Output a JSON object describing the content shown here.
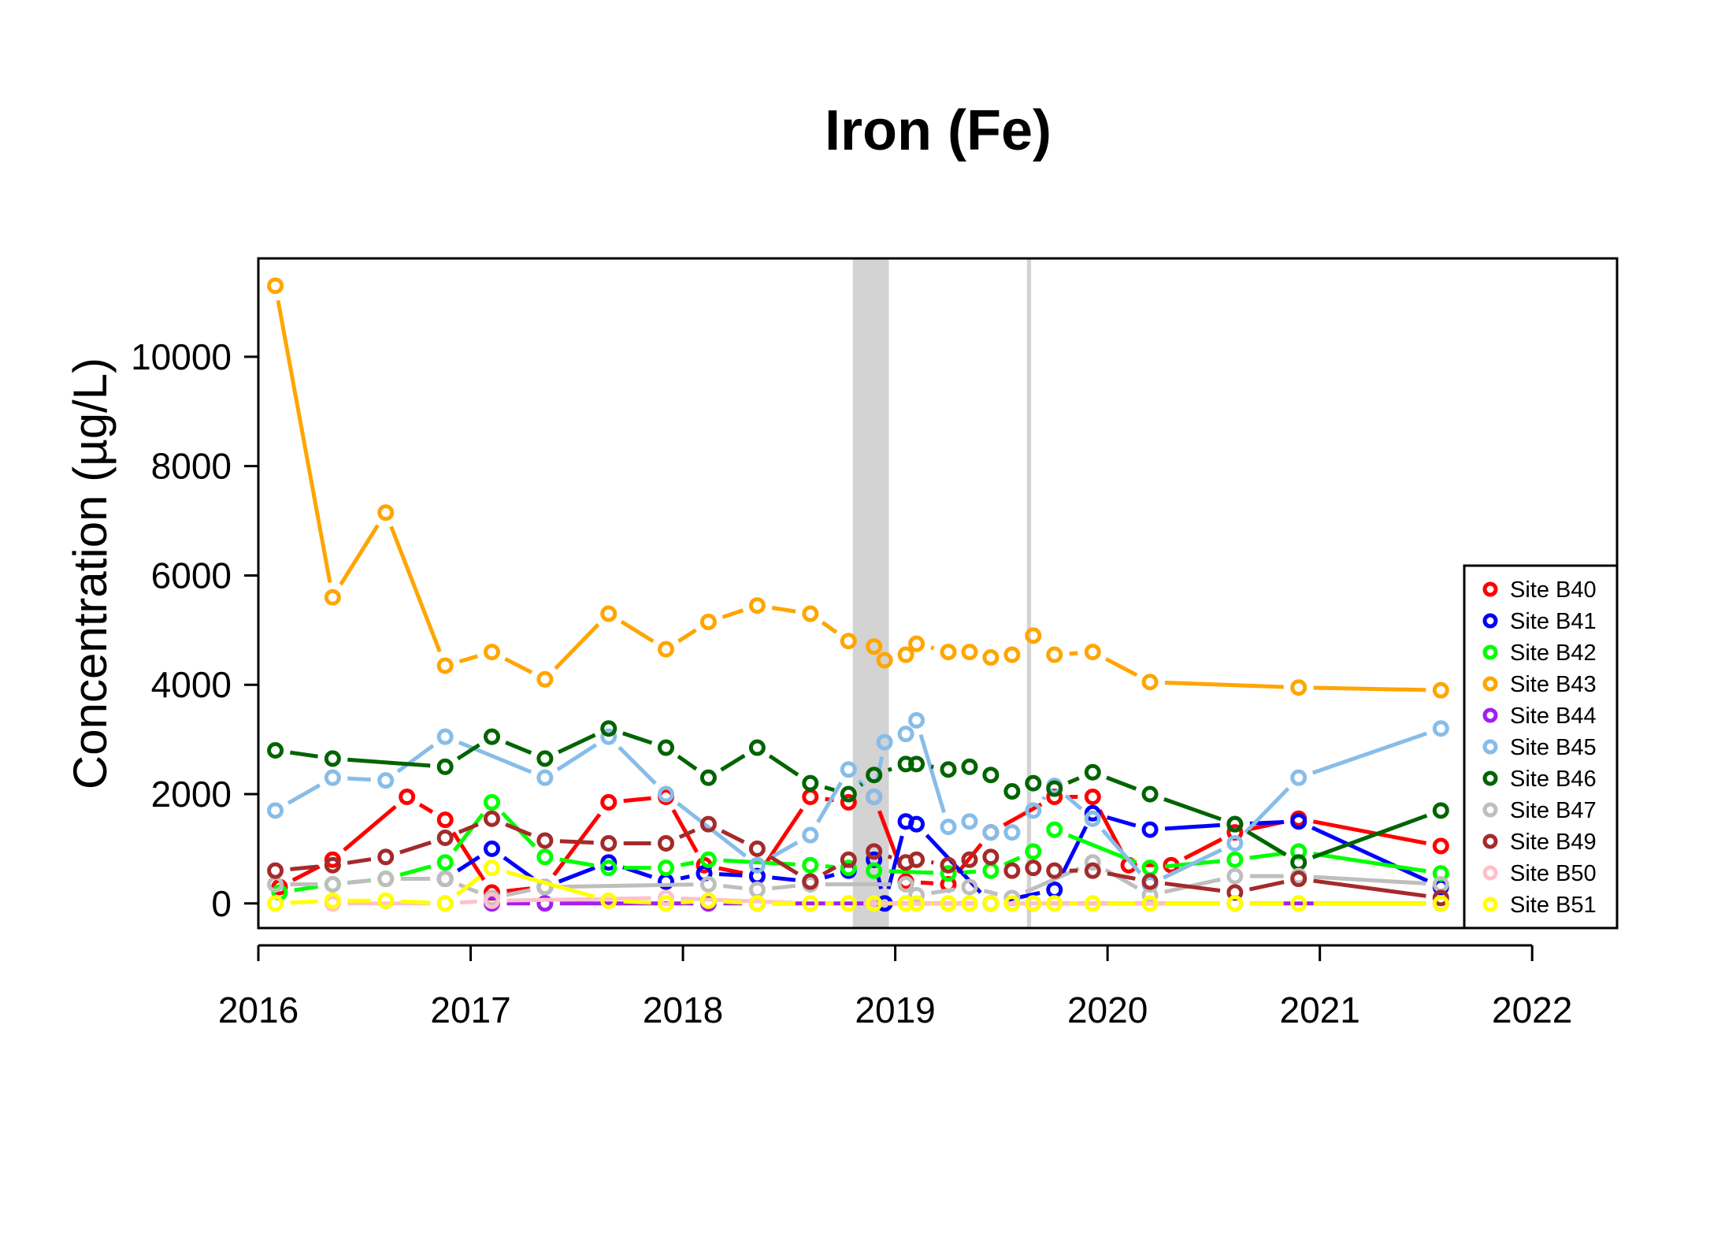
{
  "chart_data": {
    "type": "line",
    "title": "Iron (Fe)",
    "xlabel": "",
    "ylabel": "Concentration (µg/L)",
    "xlim": [
      2016.0,
      2022.4
    ],
    "ylim": [
      -450,
      11800
    ],
    "x_ticks": [
      2016,
      2017,
      2018,
      2019,
      2020,
      2021,
      2022
    ],
    "x_tick_labels": [
      "2016",
      "2017",
      "2018",
      "2019",
      "2020",
      "2021",
      "2022"
    ],
    "y_ticks": [
      0,
      2000,
      4000,
      6000,
      8000,
      10000
    ],
    "y_tick_labels": [
      "0",
      "2000",
      "4000",
      "6000",
      "8000",
      "10000"
    ],
    "legend_position": "bottom-right",
    "shaded_bands": [
      {
        "start": 2018.8,
        "end": 2018.97,
        "color": "#d3d3d3"
      },
      {
        "start": 2019.62,
        "end": 2019.64,
        "color": "#d3d3d3"
      }
    ],
    "series": [
      {
        "name": "Site B40",
        "color": "#ff0000",
        "points": [
          [
            2016.1,
            300
          ],
          [
            2016.35,
            800
          ],
          [
            2016.7,
            1950
          ],
          [
            2016.88,
            1530
          ],
          [
            2017.1,
            200
          ],
          [
            2017.35,
            300
          ],
          [
            2017.65,
            1850
          ],
          [
            2017.92,
            1950
          ],
          [
            2018.1,
            700
          ],
          [
            2018.35,
            500
          ],
          [
            2018.6,
            1950
          ],
          [
            2018.78,
            1850
          ],
          [
            2018.9,
            1950
          ],
          [
            2019.05,
            400
          ],
          [
            2019.25,
            350
          ],
          [
            2019.45,
            1300
          ],
          [
            2019.75,
            1950
          ],
          [
            2019.93,
            1950
          ],
          [
            2020.1,
            700
          ],
          [
            2020.3,
            700
          ],
          [
            2020.6,
            1300
          ],
          [
            2020.9,
            1550
          ],
          [
            2021.57,
            1050
          ]
        ]
      },
      {
        "name": "Site B41",
        "color": "#0000ff",
        "points": [
          [
            2016.88,
            450
          ],
          [
            2017.1,
            1000
          ],
          [
            2017.35,
            300
          ],
          [
            2017.65,
            750
          ],
          [
            2017.92,
            400
          ],
          [
            2018.1,
            550
          ],
          [
            2018.35,
            500
          ],
          [
            2018.6,
            400
          ],
          [
            2018.78,
            600
          ],
          [
            2018.9,
            800
          ],
          [
            2018.95,
            0
          ],
          [
            2019.05,
            1500
          ],
          [
            2019.1,
            1450
          ],
          [
            2019.45,
            0
          ],
          [
            2019.75,
            250
          ],
          [
            2019.93,
            1650
          ],
          [
            2020.2,
            1350
          ],
          [
            2020.6,
            1450
          ],
          [
            2020.9,
            1500
          ],
          [
            2021.57,
            300
          ]
        ]
      },
      {
        "name": "Site B42",
        "color": "#00ff00",
        "points": [
          [
            2016.1,
            200
          ],
          [
            2016.35,
            350
          ],
          [
            2016.6,
            450
          ],
          [
            2016.88,
            750
          ],
          [
            2017.1,
            1850
          ],
          [
            2017.35,
            850
          ],
          [
            2017.65,
            650
          ],
          [
            2017.92,
            650
          ],
          [
            2018.12,
            800
          ],
          [
            2018.6,
            700
          ],
          [
            2018.78,
            650
          ],
          [
            2018.9,
            600
          ],
          [
            2019.25,
            550
          ],
          [
            2019.45,
            600
          ],
          [
            2019.65,
            950
          ],
          [
            2019.75,
            1350
          ],
          [
            2020.2,
            650
          ],
          [
            2020.6,
            800
          ],
          [
            2020.9,
            950
          ],
          [
            2021.57,
            550
          ]
        ]
      },
      {
        "name": "Site B43",
        "color": "#ffa500",
        "points": [
          [
            2016.08,
            11300
          ],
          [
            2016.35,
            5600
          ],
          [
            2016.6,
            7150
          ],
          [
            2016.88,
            4350
          ],
          [
            2017.1,
            4600
          ],
          [
            2017.35,
            4100
          ],
          [
            2017.65,
            5300
          ],
          [
            2017.92,
            4650
          ],
          [
            2018.12,
            5150
          ],
          [
            2018.35,
            5450
          ],
          [
            2018.6,
            5300
          ],
          [
            2018.78,
            4800
          ],
          [
            2018.9,
            4700
          ],
          [
            2018.95,
            4450
          ],
          [
            2019.05,
            4550
          ],
          [
            2019.1,
            4750
          ],
          [
            2019.25,
            4600
          ],
          [
            2019.35,
            4600
          ],
          [
            2019.45,
            4500
          ],
          [
            2019.55,
            4550
          ],
          [
            2019.65,
            4900
          ],
          [
            2019.75,
            4550
          ],
          [
            2019.93,
            4600
          ],
          [
            2020.2,
            4050
          ],
          [
            2020.9,
            3950
          ],
          [
            2021.57,
            3900
          ]
        ]
      },
      {
        "name": "Site B44",
        "color": "#a020f0",
        "points": [
          [
            2017.1,
            0
          ],
          [
            2017.35,
            0
          ],
          [
            2018.12,
            0
          ],
          [
            2018.35,
            0
          ],
          [
            2019.45,
            0
          ],
          [
            2019.65,
            0
          ],
          [
            2020.6,
            0
          ],
          [
            2021.57,
            0
          ]
        ]
      },
      {
        "name": "Site B45",
        "color": "#87bde8",
        "points": [
          [
            2016.08,
            1700
          ],
          [
            2016.35,
            2300
          ],
          [
            2016.6,
            2250
          ],
          [
            2016.88,
            3050
          ],
          [
            2017.35,
            2300
          ],
          [
            2017.65,
            3050
          ],
          [
            2017.92,
            2000
          ],
          [
            2018.35,
            700
          ],
          [
            2018.6,
            1250
          ],
          [
            2018.78,
            2450
          ],
          [
            2018.9,
            1950
          ],
          [
            2018.95,
            2950
          ],
          [
            2019.05,
            3100
          ],
          [
            2019.1,
            3350
          ],
          [
            2019.25,
            1400
          ],
          [
            2019.35,
            1500
          ],
          [
            2019.45,
            1300
          ],
          [
            2019.55,
            1300
          ],
          [
            2019.65,
            1700
          ],
          [
            2019.75,
            2150
          ],
          [
            2019.93,
            1550
          ],
          [
            2020.2,
            350
          ],
          [
            2020.6,
            1100
          ],
          [
            2020.9,
            2300
          ],
          [
            2021.57,
            3200
          ]
        ]
      },
      {
        "name": "Site B46",
        "color": "#006400",
        "points": [
          [
            2016.08,
            2800
          ],
          [
            2016.35,
            2650
          ],
          [
            2016.88,
            2500
          ],
          [
            2017.1,
            3050
          ],
          [
            2017.35,
            2650
          ],
          [
            2017.65,
            3200
          ],
          [
            2017.92,
            2850
          ],
          [
            2018.12,
            2300
          ],
          [
            2018.35,
            2850
          ],
          [
            2018.6,
            2200
          ],
          [
            2018.78,
            2000
          ],
          [
            2018.9,
            2350
          ],
          [
            2019.05,
            2550
          ],
          [
            2019.1,
            2550
          ],
          [
            2019.25,
            2450
          ],
          [
            2019.35,
            2500
          ],
          [
            2019.45,
            2350
          ],
          [
            2019.55,
            2050
          ],
          [
            2019.65,
            2200
          ],
          [
            2019.75,
            2100
          ],
          [
            2019.93,
            2400
          ],
          [
            2020.2,
            2000
          ],
          [
            2020.6,
            1450
          ],
          [
            2020.9,
            750
          ],
          [
            2021.57,
            1700
          ]
        ]
      },
      {
        "name": "Site B47",
        "color": "#bebebe",
        "points": [
          [
            2016.08,
            350
          ],
          [
            2016.35,
            350
          ],
          [
            2016.6,
            450
          ],
          [
            2016.88,
            450
          ],
          [
            2017.1,
            100
          ],
          [
            2017.35,
            300
          ],
          [
            2018.12,
            350
          ],
          [
            2018.35,
            250
          ],
          [
            2018.6,
            350
          ],
          [
            2019.05,
            350
          ],
          [
            2019.1,
            150
          ],
          [
            2019.35,
            300
          ],
          [
            2019.55,
            100
          ],
          [
            2019.93,
            750
          ],
          [
            2020.2,
            150
          ],
          [
            2020.6,
            500
          ],
          [
            2020.9,
            500
          ],
          [
            2021.57,
            350
          ]
        ]
      },
      {
        "name": "Site B49",
        "color": "#a52a2a",
        "points": [
          [
            2016.08,
            600
          ],
          [
            2016.35,
            700
          ],
          [
            2016.6,
            850
          ],
          [
            2016.88,
            1200
          ],
          [
            2017.1,
            1550
          ],
          [
            2017.35,
            1150
          ],
          [
            2017.65,
            1100
          ],
          [
            2017.92,
            1100
          ],
          [
            2018.12,
            1450
          ],
          [
            2018.35,
            1000
          ],
          [
            2018.6,
            400
          ],
          [
            2018.78,
            800
          ],
          [
            2018.9,
            950
          ],
          [
            2019.05,
            750
          ],
          [
            2019.1,
            800
          ],
          [
            2019.25,
            700
          ],
          [
            2019.35,
            800
          ],
          [
            2019.45,
            850
          ],
          [
            2019.55,
            600
          ],
          [
            2019.65,
            650
          ],
          [
            2019.75,
            600
          ],
          [
            2019.93,
            600
          ],
          [
            2020.2,
            400
          ],
          [
            2020.6,
            200
          ],
          [
            2020.9,
            450
          ],
          [
            2021.57,
            100
          ]
        ]
      },
      {
        "name": "Site B50",
        "color": "#ffc0cb",
        "points": [
          [
            2016.35,
            0
          ],
          [
            2016.88,
            0
          ],
          [
            2017.1,
            50
          ],
          [
            2017.92,
            100
          ],
          [
            2018.6,
            0
          ],
          [
            2018.78,
            0
          ],
          [
            2019.45,
            0
          ],
          [
            2020.6,
            0
          ]
        ]
      },
      {
        "name": "Site B51",
        "color": "#ffff00",
        "points": [
          [
            2016.08,
            0
          ],
          [
            2016.35,
            50
          ],
          [
            2016.6,
            50
          ],
          [
            2016.88,
            0
          ],
          [
            2017.1,
            650
          ],
          [
            2017.65,
            50
          ],
          [
            2017.92,
            0
          ],
          [
            2018.12,
            50
          ],
          [
            2018.35,
            0
          ],
          [
            2018.6,
            0
          ],
          [
            2018.78,
            0
          ],
          [
            2018.9,
            0
          ],
          [
            2019.05,
            0
          ],
          [
            2019.1,
            0
          ],
          [
            2019.25,
            0
          ],
          [
            2019.35,
            0
          ],
          [
            2019.45,
            0
          ],
          [
            2019.55,
            0
          ],
          [
            2019.65,
            0
          ],
          [
            2019.75,
            0
          ],
          [
            2019.93,
            0
          ],
          [
            2020.2,
            0
          ],
          [
            2020.6,
            0
          ],
          [
            2020.9,
            0
          ],
          [
            2021.57,
            0
          ]
        ]
      }
    ]
  }
}
